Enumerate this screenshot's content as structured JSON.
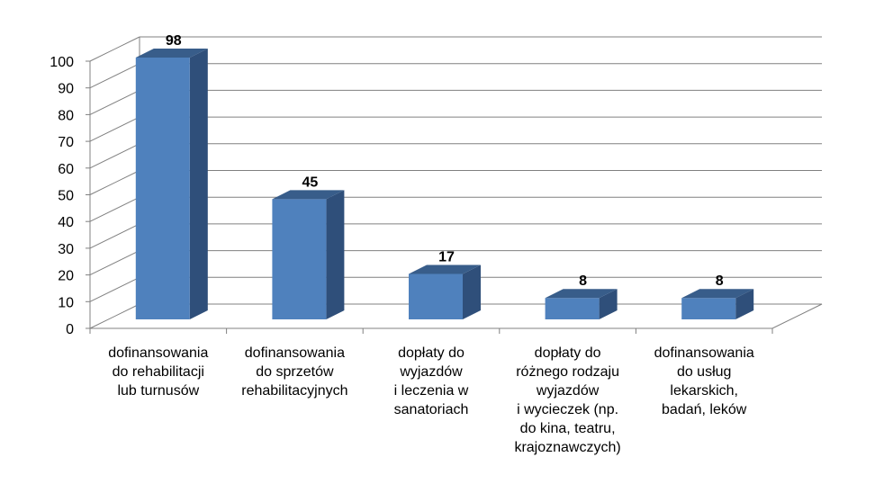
{
  "chart_data": {
    "type": "bar",
    "title": "",
    "xlabel": "",
    "ylabel": "",
    "ylim": [
      0,
      100
    ],
    "yticks": [
      0,
      10,
      20,
      30,
      40,
      50,
      60,
      70,
      80,
      90,
      100
    ],
    "grid": true,
    "style": "3d-column",
    "categories": [
      "dofinansowania\ndo rehabilitacji\nlub turnusów",
      "dofinansowania\ndo sprzetów\nrehabilitacyjnych",
      "dopłaty do\nwyjazdów\ni leczenia w\nsanatoriach",
      "dopłaty do\nróżnego rodzaju\nwyjazdów\ni wycieczek (np.\ndo kina, teatru,\nkrajoznawczych)",
      "dofinansowania\ndo usług\nlekarskich,\nbadań, leków"
    ],
    "values": [
      98,
      45,
      17,
      8,
      8
    ],
    "data_labels": [
      "98",
      "45",
      "17",
      "8",
      "8"
    ],
    "colors": {
      "bar_front": "#4f81bd",
      "bar_side": "#2f4f7a",
      "bar_top": "#385d8a",
      "grid": "#808080"
    }
  }
}
